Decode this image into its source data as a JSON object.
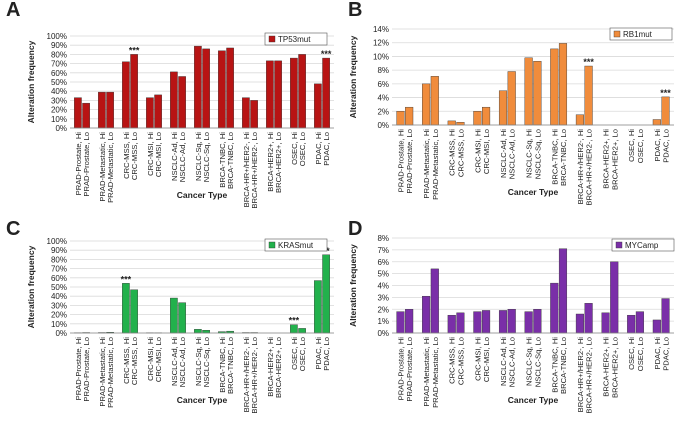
{
  "chart_data": [
    {
      "type": "bar",
      "panel_label": "A",
      "x_label": "Cancer Type",
      "y_label": "Alteration frequency",
      "categories": [
        "PRAD-Prostate, Hi",
        "PRAD-Prostate, Lo",
        "PRAD-Metastatic, Hi",
        "PRAD-Metastatic, Lo",
        "CRC-MSS, Hi",
        "CRC-MSS, Lo",
        "CRC-MSI, Hi",
        "CRC-MSI, Lo",
        "NSCLC-Ad, Hi",
        "NSCLC-Ad, Lo",
        "NSCLC-Sq, Hi",
        "NSCLC-Sq, Lo",
        "BRCA-TNBC, Hi",
        "BRCA-TNBC, Lo",
        "BRCA-HR+/HER2-, Hi",
        "BRCA-HR+/HER2-, Lo",
        "BRCA-HER2+, Hi",
        "BRCA-HER2+, Lo",
        "OSEC, Hi",
        "OSEC, Lo",
        "PDAC, Hi",
        "PDAC, Lo"
      ],
      "series": [
        {
          "name": "TP53mut",
          "color": "#b81414",
          "values": [
            33,
            27,
            39,
            39,
            72,
            80,
            33,
            36,
            61,
            56,
            89,
            86,
            84,
            87,
            33,
            30,
            73,
            73,
            76,
            80,
            48,
            76
          ]
        }
      ],
      "ylim": [
        0,
        100
      ],
      "yticks": [
        {
          "value": 0,
          "label": "0%"
        },
        {
          "value": 10,
          "label": "10%"
        },
        {
          "value": 20,
          "label": "20%"
        },
        {
          "value": 30,
          "label": "30%"
        },
        {
          "value": 40,
          "label": "40%"
        },
        {
          "value": 50,
          "label": "50%"
        },
        {
          "value": 60,
          "label": "60%"
        },
        {
          "value": 70,
          "label": "70%"
        },
        {
          "value": 80,
          "label": "80%"
        },
        {
          "value": 90,
          "label": "90%"
        },
        {
          "value": 100,
          "label": "100%"
        }
      ],
      "annotations": [
        {
          "text": "***",
          "category": "CRC-MSS, Lo"
        },
        {
          "text": "***",
          "category": "PDAC, Lo"
        }
      ]
    },
    {
      "type": "bar",
      "panel_label": "B",
      "x_label": "Cancer Type",
      "y_label": "Alteration frequency",
      "categories": [
        "PRAD-Prostate, Hi",
        "PRAD-Prostate, Lo",
        "PRAD-Metastatic, Hi",
        "PRAD-Metastatic, Lo",
        "CRC-MSS, Hi",
        "CRC-MSS, Lo",
        "CRC-MSI, Hi",
        "CRC-MSI, Lo",
        "NSCLC-Ad, Hi",
        "NSCLC-Ad, Lo",
        "NSCLC-Sq, Hi",
        "NSCLC-Sq, Lo",
        "BRCA-TNBC, Hi",
        "BRCA-TNBC, Lo",
        "BRCA-HR+/HER2-, Hi",
        "BRCA-HR+/HER2-, Lo",
        "BRCA-HER2+, Hi",
        "BRCA-HER2+, Lo",
        "OSEC, Hi",
        "OSEC, Lo",
        "PDAC, Hi",
        "PDAC, Lo"
      ],
      "series": [
        {
          "name": "RB1mut",
          "color": "#f08c3c",
          "values": [
            2.0,
            2.6,
            6.0,
            7.1,
            0.6,
            0.4,
            2.0,
            2.6,
            5.0,
            7.8,
            9.8,
            9.3,
            11.1,
            11.9,
            1.5,
            8.6,
            0,
            0,
            0,
            0,
            0.8,
            4.1
          ]
        }
      ],
      "ylim": [
        0,
        14
      ],
      "yticks": [
        {
          "value": 0,
          "label": "0%"
        },
        {
          "value": 2,
          "label": "2%"
        },
        {
          "value": 4,
          "label": "4%"
        },
        {
          "value": 6,
          "label": "6%"
        },
        {
          "value": 8,
          "label": "8%"
        },
        {
          "value": 10,
          "label": "10%"
        },
        {
          "value": 12,
          "label": "12%"
        },
        {
          "value": 14,
          "label": "14%"
        }
      ],
      "annotations": [
        {
          "text": "***",
          "category": "BRCA-HR+/HER2-, Lo"
        },
        {
          "text": "***",
          "category": "PDAC, Lo"
        }
      ]
    },
    {
      "type": "bar",
      "panel_label": "C",
      "x_label": "Cancer Type",
      "y_label": "Alteration frequency",
      "categories": [
        "PRAD-Prostate, Hi",
        "PRAD-Prostate, Lo",
        "PRAD-Metastatic, Hi",
        "PRAD-Metastatic, Lo",
        "CRC-MSS, Hi",
        "CRC-MSS, Lo",
        "CRC-MSI, Hi",
        "CRC-MSI, Lo",
        "NSCLC-Ad, Hi",
        "NSCLC-Ad, Lo",
        "NSCLC-Sq, Hi",
        "NSCLC-Sq, Lo",
        "BRCA-TNBC, Hi",
        "BRCA-TNBC, Lo",
        "BRCA-HR+/HER2-, Hi",
        "BRCA-HR+/HER2-, Lo",
        "BRCA-HER2+, Hi",
        "BRCA-HER2+, Lo",
        "OSEC, Hi",
        "OSEC, Lo",
        "PDAC, Hi",
        "PDAC, Lo"
      ],
      "series": [
        {
          "name": "KRASmut",
          "color": "#22b14c",
          "values": [
            0.3,
            0.5,
            0.5,
            0.8,
            54,
            47,
            0.3,
            0.2,
            38,
            33,
            4,
            3,
            1.5,
            2,
            0.5,
            0.5,
            0,
            0,
            9,
            5,
            57,
            85
          ]
        }
      ],
      "ylim": [
        0,
        100
      ],
      "yticks": [
        {
          "value": 0,
          "label": "0%"
        },
        {
          "value": 10,
          "label": "10%"
        },
        {
          "value": 20,
          "label": "20%"
        },
        {
          "value": 30,
          "label": "30%"
        },
        {
          "value": 40,
          "label": "40%"
        },
        {
          "value": 50,
          "label": "50%"
        },
        {
          "value": 60,
          "label": "60%"
        },
        {
          "value": 70,
          "label": "70%"
        },
        {
          "value": 80,
          "label": "80%"
        },
        {
          "value": 90,
          "label": "90%"
        },
        {
          "value": 100,
          "label": "100%"
        }
      ],
      "annotations": [
        {
          "text": "***",
          "category": "CRC-MSS, Hi"
        },
        {
          "text": "***",
          "category": "OSEC, Hi"
        },
        {
          "text": "**",
          "category": "PDAC, Lo"
        }
      ]
    },
    {
      "type": "bar",
      "panel_label": "D",
      "x_label": "Cancer Type",
      "y_label": "Alteration frequency",
      "categories": [
        "PRAD-Prostate, Hi",
        "PRAD-Prostate, Lo",
        "PRAD-Metastatic, Hi",
        "PRAD-Metastatic, Lo",
        "CRC-MSS, Hi",
        "CRC-MSS, Lo",
        "CRC-MSI, Hi",
        "CRC-MSI, Lo",
        "NSCLC-Ad, Hi",
        "NSCLC-Ad, Lo",
        "NSCLC-Sq, Hi",
        "NSCLC-Sq, Lo",
        "BRCA-TNBC, Hi",
        "BRCA-TNBC, Lo",
        "BRCA-HR+/HER2-, Hi",
        "BRCA-HR+/HER2-, Lo",
        "BRCA-HER2+, Hi",
        "BRCA-HER2+, Lo",
        "OSEC, Hi",
        "OSEC, Lo",
        "PDAC, Hi",
        "PDAC, Lo"
      ],
      "series": [
        {
          "name": "MYCamp",
          "color": "#7a2fa8",
          "values": [
            1.8,
            2.0,
            3.1,
            5.4,
            1.5,
            1.7,
            1.8,
            1.9,
            1.9,
            2.0,
            1.8,
            2.0,
            4.2,
            7.1,
            1.6,
            2.5,
            1.7,
            6.0,
            1.5,
            1.8,
            1.1,
            2.9
          ]
        }
      ],
      "ylim": [
        0,
        8
      ],
      "yticks": [
        {
          "value": 0,
          "label": "0%"
        },
        {
          "value": 1,
          "label": "1%"
        },
        {
          "value": 2,
          "label": "2%"
        },
        {
          "value": 3,
          "label": "3%"
        },
        {
          "value": 4,
          "label": "4%"
        },
        {
          "value": 5,
          "label": "5%"
        },
        {
          "value": 6,
          "label": "6%"
        },
        {
          "value": 7,
          "label": "7%"
        },
        {
          "value": 8,
          "label": "8%"
        }
      ],
      "annotations": []
    }
  ]
}
